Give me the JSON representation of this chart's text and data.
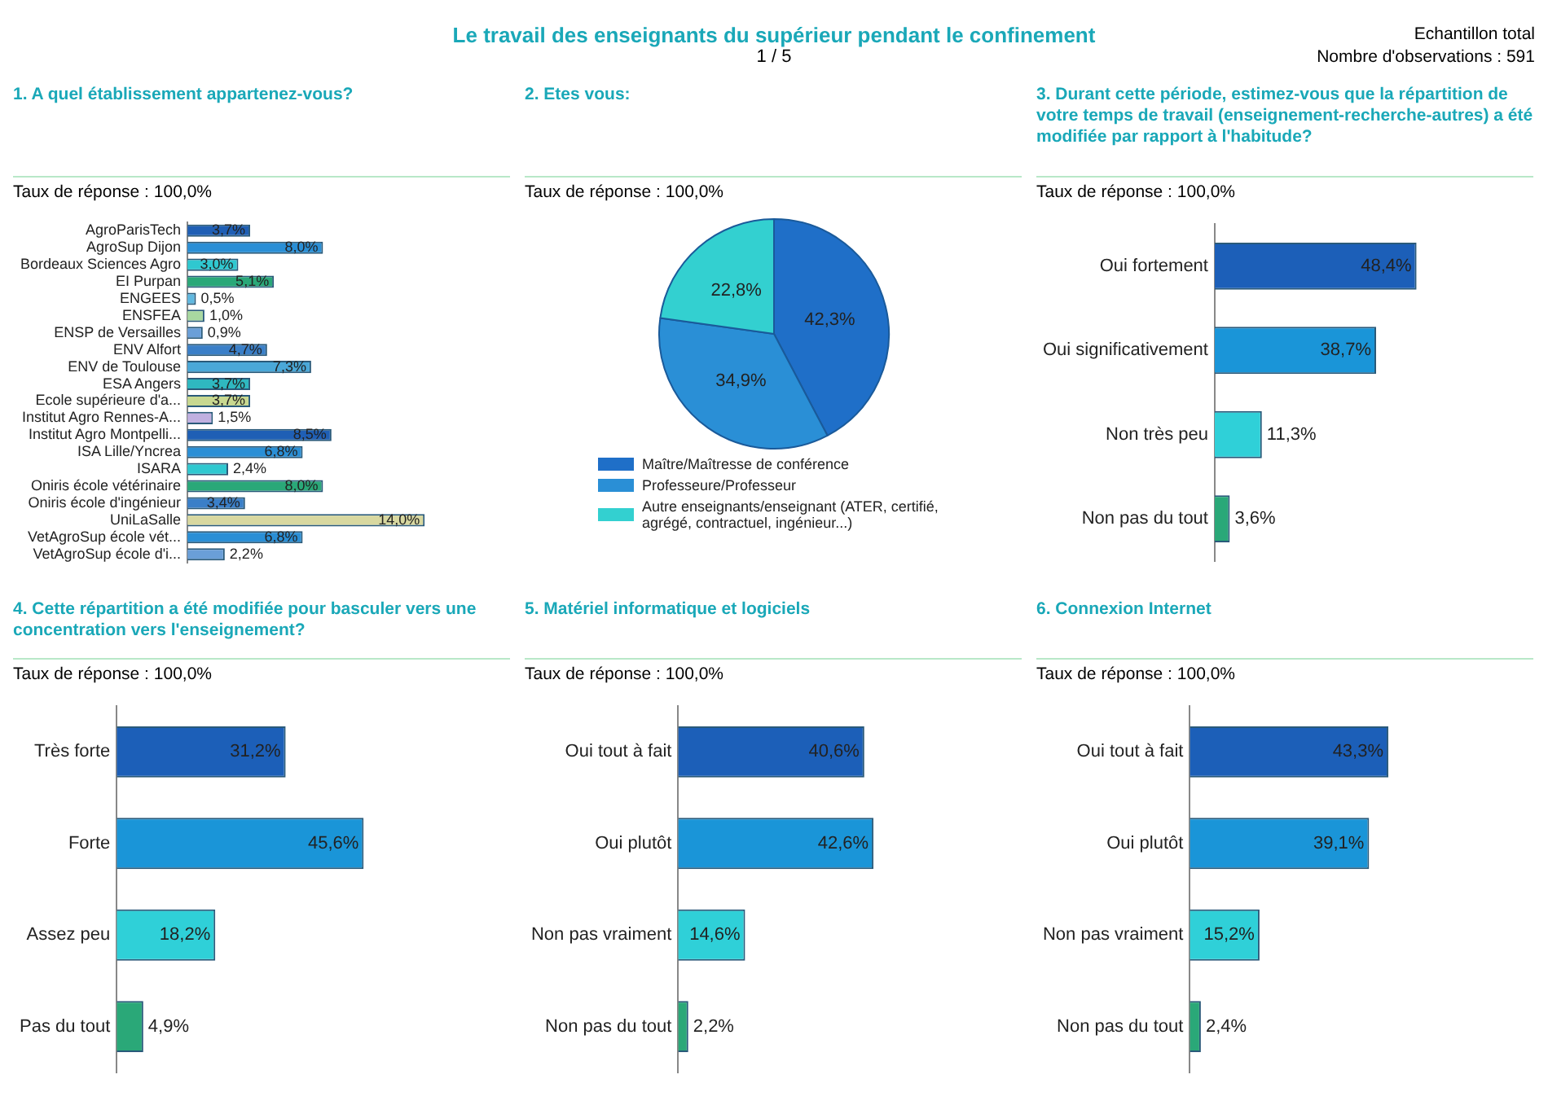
{
  "chart_data": [
    {
      "type": "other",
      "title": "Le travail des enseignants du supérieur pendant le confinement",
      "annotations": [
        "1 / 5",
        "Echantillon total",
        "Nombre d'observations : 591"
      ]
    },
    {
      "type": "bar",
      "orientation": "horizontal",
      "title": "1. A quel établissement appartenez-vous?",
      "subtitle": "Taux de réponse : 100,0%",
      "categories": [
        "AgroParisTech",
        "AgroSup Dijon",
        "Bordeaux Sciences Agro",
        "EI Purpan",
        "ENGEES",
        "ENSFEA",
        "ENSP de Versailles",
        "ENV Alfort",
        "ENV de Toulouse",
        "ESA Angers",
        "Ecole supérieure d'a...",
        "Institut Agro Rennes-A...",
        "Institut Agro Montpelli...",
        "ISA Lille/Yncrea",
        "ISARA",
        "Oniris école vétérinaire",
        "Oniris école d'ingénieur",
        "UniLaSalle",
        "VetAgroSup école vét...",
        "VetAgroSup école d'i..."
      ],
      "values": [
        3.7,
        8.0,
        3.0,
        5.1,
        0.5,
        1.0,
        0.9,
        4.7,
        7.3,
        3.7,
        3.7,
        1.5,
        8.5,
        6.8,
        2.4,
        8.0,
        3.4,
        14.0,
        6.8,
        2.2
      ],
      "value_labels": [
        "3,7%",
        "8,0%",
        "3,0%",
        "5,1%",
        "0,5%",
        "1,0%",
        "0,9%",
        "4,7%",
        "7,3%",
        "3,7%",
        "3,7%",
        "1,5%",
        "8,5%",
        "6,8%",
        "2,4%",
        "8,0%",
        "3,4%",
        "14,0%",
        "6,8%",
        "2,2%"
      ],
      "colors": [
        "#1f5fb5",
        "#2a8fd6",
        "#2fc8d0",
        "#2aa878",
        "#5fb8e0",
        "#a8d8a0",
        "#6a9fd8",
        "#3a7fc8",
        "#4aa8d8",
        "#2fb8c0",
        "#c8d890",
        "#c0b0e0",
        "#1f5fb5",
        "#2a8fd6",
        "#2fc8d0",
        "#2aa878",
        "#3a7fc8",
        "#d8d8a0",
        "#2a8fd6",
        "#6a9fd8"
      ]
    },
    {
      "type": "pie",
      "title": "2. Etes vous:",
      "subtitle": "Taux de réponse : 100,0%",
      "legend": "bottom",
      "categories": [
        "Maître/Maîtresse de conférence",
        "Professeure/Professeur",
        "Autre enseignants/enseignant (ATER, certifié, agrégé, contractuel, ingénieur...)"
      ],
      "values": [
        42.3,
        34.9,
        22.8
      ],
      "value_labels": [
        "42,3%",
        "34,9%",
        "22,8%"
      ],
      "colors": [
        "#1f6fc8",
        "#2a8fd6",
        "#33d0d0"
      ]
    },
    {
      "type": "bar",
      "orientation": "horizontal",
      "title": "3. Durant cette période, estimez-vous que la répartition de votre temps de travail (enseignement-recherche-autres) a été modifiée par rapport à l'habitude?",
      "subtitle": "Taux de réponse : 100,0%",
      "categories": [
        "Oui fortement",
        "Oui significativement",
        "Non très peu",
        "Non pas du tout"
      ],
      "values": [
        48.4,
        38.7,
        11.3,
        3.6
      ],
      "value_labels": [
        "48,4%",
        "38,7%",
        "11,3%",
        "3,6%"
      ],
      "colors": [
        "#1c5fb8",
        "#1a95d8",
        "#2fd0d8",
        "#2aa878"
      ]
    },
    {
      "type": "bar",
      "orientation": "horizontal",
      "title": "4. Cette répartition a été modifiée pour basculer vers une concentration vers l'enseignement?",
      "subtitle": "Taux de réponse : 100,0%",
      "categories": [
        "Très forte",
        "Forte",
        "Assez peu",
        "Pas du tout"
      ],
      "values": [
        31.2,
        45.6,
        18.2,
        4.9
      ],
      "value_labels": [
        "31,2%",
        "45,6%",
        "18,2%",
        "4,9%"
      ],
      "colors": [
        "#1c5fb8",
        "#1a95d8",
        "#2fd0d8",
        "#2aa878"
      ]
    },
    {
      "type": "bar",
      "orientation": "horizontal",
      "title": "5. Matériel informatique et logiciels",
      "subtitle": "Taux de réponse : 100,0%",
      "categories": [
        "Oui tout à fait",
        "Oui plutôt",
        "Non pas vraiment",
        "Non pas du tout"
      ],
      "values": [
        40.6,
        42.6,
        14.6,
        2.2
      ],
      "value_labels": [
        "40,6%",
        "42,6%",
        "14,6%",
        "2,2%"
      ],
      "colors": [
        "#1c5fb8",
        "#1a95d8",
        "#2fd0d8",
        "#2aa878"
      ]
    },
    {
      "type": "bar",
      "orientation": "horizontal",
      "title": "6. Connexion Internet",
      "subtitle": "Taux de réponse : 100,0%",
      "categories": [
        "Oui tout à fait",
        "Oui plutôt",
        "Non pas vraiment",
        "Non pas du tout"
      ],
      "values": [
        43.3,
        39.1,
        15.2,
        2.4
      ],
      "value_labels": [
        "43,3%",
        "39,1%",
        "15,2%",
        "2,4%"
      ],
      "colors": [
        "#1c5fb8",
        "#1a95d8",
        "#2fd0d8",
        "#2aa878"
      ]
    }
  ]
}
